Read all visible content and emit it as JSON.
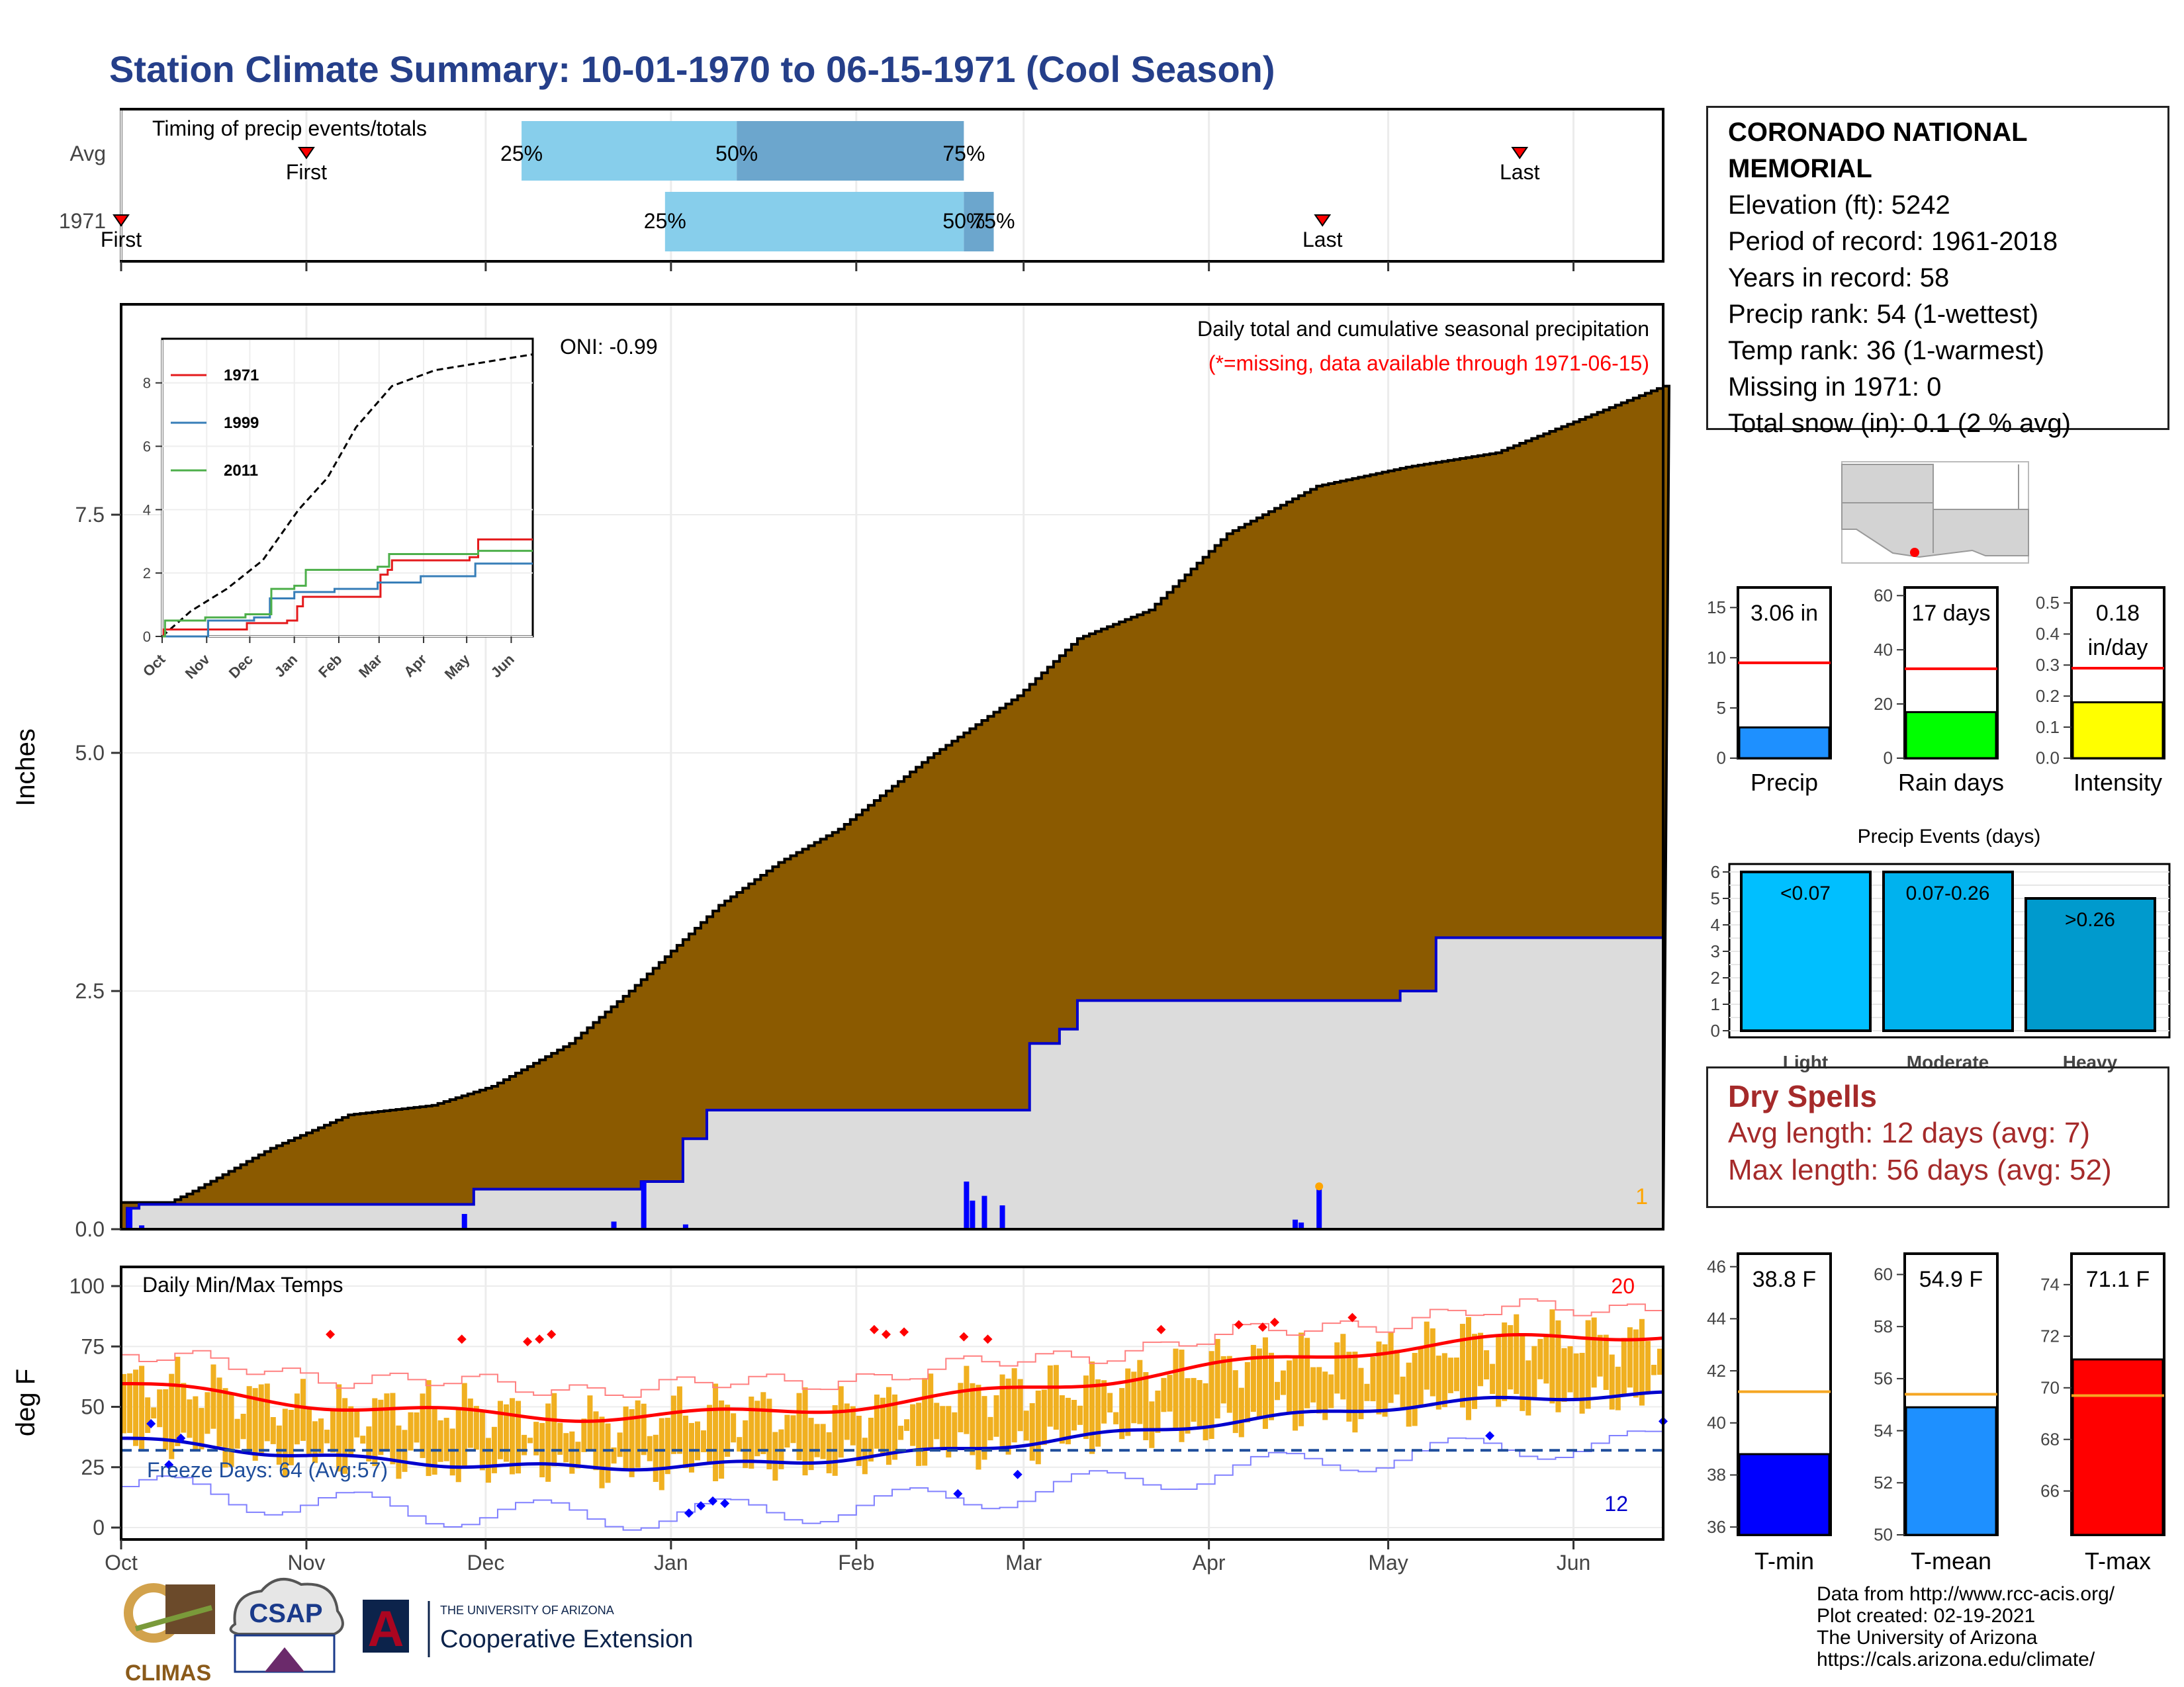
{
  "title": "Station Climate Summary: 10-01-1970 to 06-15-1971 (Cool Season)",
  "timing": {
    "label": "Timing of precip events/totals",
    "rows": [
      {
        "name": "Avg",
        "first_label": "First",
        "last_label": "Last",
        "q25": "25%",
        "q50": "50%",
        "q75": "75%",
        "first_date": "1970-11-01",
        "last_date": "1971-05-23",
        "q25_date": "1970-12-07",
        "q50_date": "1971-01-12",
        "q75_date": "1971-02-19"
      },
      {
        "name": "1971",
        "first_label": "First",
        "last_label": "Last",
        "q25": "25%",
        "q50": "50%",
        "q75": "75%",
        "first_date": "1970-10-01",
        "last_date": "1971-04-20",
        "q25_date": "1970-12-31",
        "q50_date": "1971-02-19",
        "q75_date": "1971-02-24"
      }
    ],
    "colors": {
      "band_light": "#87ceeb",
      "band_dark": "#6ca6cd",
      "marker": "#ff0000"
    }
  },
  "precip_panel": {
    "title": "Daily total and cumulative seasonal precipitation",
    "note": "(*=missing, data available through 1971-06-15)",
    "oni": "ONI: -0.99",
    "ylabel": "Inches",
    "yticks": [
      "0.0",
      "2.5",
      "5.0",
      "7.5"
    ],
    "corner_count": "1",
    "colors": {
      "normal_fill": "#8b5a00",
      "observed_fill": "#dcdcdc",
      "observed_line": "#0000cd",
      "bars": "#0000ff",
      "note": "#ff0000",
      "count": "#ffa500"
    }
  },
  "inset": {
    "yticks": [
      "0",
      "2",
      "4",
      "6",
      "8"
    ],
    "xticks": [
      "Oct",
      "Nov",
      "Dec",
      "Jan",
      "Feb",
      "Mar",
      "Apr",
      "May",
      "Jun"
    ],
    "legend": [
      {
        "name": "1971",
        "color": "#e41a1c"
      },
      {
        "name": "1999",
        "color": "#377eb8"
      },
      {
        "name": "2011",
        "color": "#4daf4a"
      }
    ]
  },
  "temp_panel": {
    "title": "Daily Min/Max Temps",
    "ylabel": "deg F",
    "yticks": [
      "0",
      "25",
      "50",
      "75",
      "100"
    ],
    "freeze_label": "Freeze Days: 64 (Avg:57)",
    "count_high": "20",
    "count_low": "12",
    "colors": {
      "bars": "#f0b020",
      "max_line": "#ff0000",
      "min_line": "#0000cd",
      "freeze": "#1f4e9c"
    }
  },
  "x_months": [
    "Oct",
    "Nov",
    "Dec",
    "Jan",
    "Feb",
    "Mar",
    "Apr",
    "May",
    "Jun"
  ],
  "station": {
    "name_line1": "CORONADO NATIONAL",
    "name_line2": "MEMORIAL",
    "elevation": "Elevation (ft): 5242",
    "period": "Period of record: 1961-2018",
    "years": "Years in record: 58",
    "precip_rank": "Precip rank: 54 (1-wettest)",
    "temp_rank": "Temp rank: 36 (1-warmest)",
    "missing": "Missing in 1971: 0",
    "snow": "Total snow (in): 0.1 (2 % avg)"
  },
  "small_bars": [
    {
      "label": "Precip",
      "value_label": "3.06 in",
      "value": 3.06,
      "avg": 9.5,
      "ylim": [
        0,
        17
      ],
      "yticks": [
        "0",
        "5",
        "10",
        "15"
      ],
      "tickvals": [
        0,
        5,
        10,
        15
      ],
      "color": "#1e90ff"
    },
    {
      "label": "Rain days",
      "value_label": "17 days",
      "value": 17,
      "avg": 33,
      "ylim": [
        0,
        63
      ],
      "yticks": [
        "0",
        "20",
        "40",
        "60"
      ],
      "tickvals": [
        0,
        20,
        40,
        60
      ],
      "color": "#00ff00"
    },
    {
      "label": "Intensity",
      "value_label": "0.18",
      "value_label2": "in/day",
      "value": 0.18,
      "avg": 0.29,
      "ylim": [
        0,
        0.55
      ],
      "yticks": [
        "0.0",
        "0.1",
        "0.2",
        "0.3",
        "0.4",
        "0.5"
      ],
      "tickvals": [
        0,
        0.1,
        0.2,
        0.3,
        0.4,
        0.5
      ],
      "color": "#ffff00"
    }
  ],
  "events": {
    "title": "Precip Events (days)",
    "yticks": [
      "0",
      "1",
      "2",
      "3",
      "4",
      "5",
      "6"
    ],
    "bars": [
      {
        "label": "Light",
        "range": "<0.07",
        "value": 6,
        "color": "#00bfff"
      },
      {
        "label": "Moderate",
        "range": "0.07-0.26",
        "value": 6,
        "color": "#00b2ee"
      },
      {
        "label": "Heavy",
        "range": ">0.26",
        "value": 5,
        "color": "#009acd"
      }
    ]
  },
  "dry": {
    "title": "Dry Spells",
    "avg": "Avg length: 12 days (avg: 7)",
    "max": "Max length: 56 days (avg: 52)"
  },
  "temp_bars": [
    {
      "label": "T-min",
      "value_label": "38.8 F",
      "value": 38.8,
      "avg": 41.2,
      "ylim": [
        35.7,
        46.5
      ],
      "yticks": [
        "36",
        "38",
        "40",
        "42",
        "44",
        "46"
      ],
      "tickvals": [
        36,
        38,
        40,
        42,
        44,
        46
      ],
      "color": "#0000ff"
    },
    {
      "label": "T-mean",
      "value_label": "54.9 F",
      "value": 54.9,
      "avg": 55.4,
      "ylim": [
        50,
        60.8
      ],
      "yticks": [
        "50",
        "52",
        "54",
        "56",
        "58",
        "60"
      ],
      "tickvals": [
        50,
        52,
        54,
        56,
        58,
        60
      ],
      "color": "#1e90ff"
    },
    {
      "label": "T-max",
      "value_label": "71.1 F",
      "value": 71.1,
      "avg": 69.7,
      "ylim": [
        64.3,
        75.2
      ],
      "yticks": [
        "66",
        "68",
        "70",
        "72",
        "74"
      ],
      "tickvals": [
        66,
        68,
        70,
        72,
        74
      ],
      "color": "#ff0000"
    }
  ],
  "logos": {
    "climas": "CLIMAS",
    "csap": "CSAP",
    "ua_small": "THE UNIVERSITY OF ARIZONA",
    "ua_big": "Cooperative Extension",
    "ua_letter": "A"
  },
  "credits": [
    "Data from http://www.rcc-acis.org/",
    "Plot created: 02-19-2021",
    "The University of Arizona",
    "https://cals.arizona.edu/climate/"
  ]
}
